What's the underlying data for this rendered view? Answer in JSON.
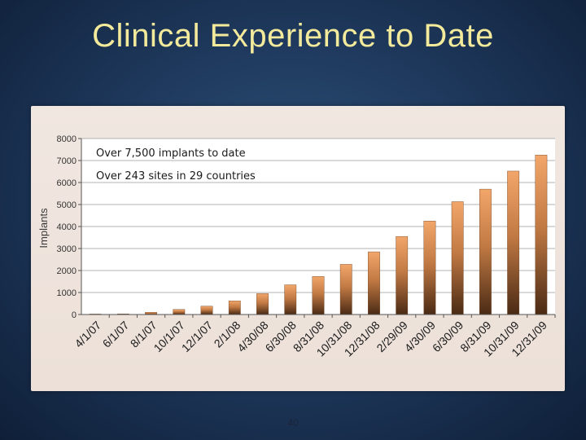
{
  "slide": {
    "title": "Clinical Experience to Date",
    "page_number": "40"
  },
  "colors": {
    "title": "#f3eb9b",
    "bar_top": "#f2a66a",
    "bar_bottom": "#4a2a14",
    "panel": "#efe4dd"
  },
  "chart_data": {
    "type": "bar",
    "ylabel": "Implants",
    "xlabel": "",
    "ylim": [
      0,
      8000
    ],
    "yticks": [
      0,
      1000,
      2000,
      3000,
      4000,
      5000,
      6000,
      7000,
      8000
    ],
    "grid": true,
    "categories": [
      "4/1/07",
      "6/1/07",
      "8/1/07",
      "10/1/07",
      "12/1/07",
      "2/1/08",
      "4/30/08",
      "6/30/08",
      "8/31/08",
      "10/31/08",
      "12/31/08",
      "2/29/09",
      "4/30/09",
      "6/30/09",
      "8/31/09",
      "10/31/09",
      "12/31/09"
    ],
    "values": [
      0,
      30,
      100,
      230,
      380,
      620,
      950,
      1350,
      1730,
      2280,
      2850,
      3550,
      4250,
      5130,
      5700,
      6520,
      7250
    ],
    "annotations": [
      "Over 7,500 implants to date",
      "Over 243 sites in 29 countries"
    ]
  }
}
